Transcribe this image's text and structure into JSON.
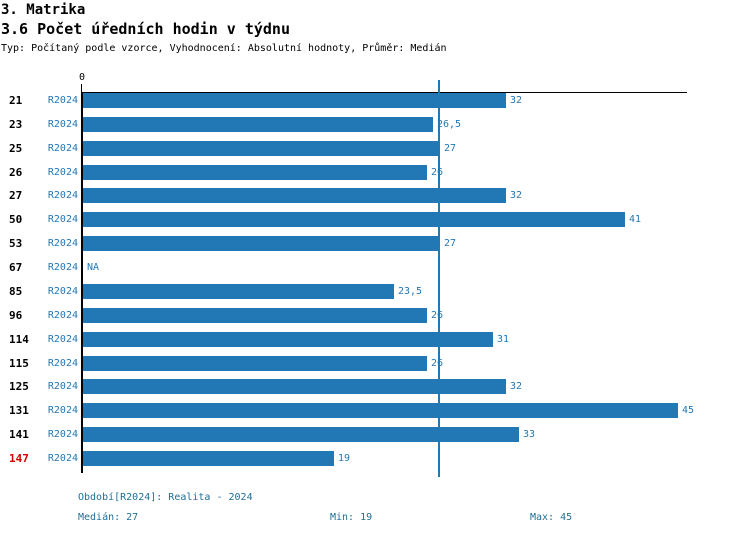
{
  "header": {
    "title": "3. Matrika",
    "subtitle": "3.6 Počet úředních hodin v týdnu",
    "meta": "Typ: Počítaný podle vzorce, Vyhodnocení: Absolutní hodnoty, Průměr: Medián"
  },
  "chart_data": {
    "type": "bar",
    "orientation": "horizontal",
    "title": "3.6 Počet úředních hodin v týdnu",
    "xlabel": "",
    "ylabel": "",
    "xlim": [
      0,
      45.8
    ],
    "x_ticks": [
      "0"
    ],
    "grid": false,
    "legend": "none",
    "series_label": "R2024",
    "categories": [
      "21",
      "23",
      "25",
      "26",
      "27",
      "50",
      "53",
      "67",
      "85",
      "96",
      "114",
      "115",
      "125",
      "131",
      "141",
      "147"
    ],
    "values": [
      32,
      26.5,
      27,
      26,
      32,
      41,
      27,
      null,
      23.5,
      26,
      31,
      26,
      32,
      45,
      33,
      19
    ],
    "value_labels": [
      "32",
      "26,5",
      "27",
      "26",
      "32",
      "41",
      "27",
      "NA",
      "23,5",
      "26",
      "31",
      "26",
      "32",
      "45",
      "33",
      "19"
    ],
    "highlighted_category": "147",
    "median_line_value": 27,
    "colors": {
      "bar": "#2277b5",
      "value_label": "#2277b5",
      "series_label": "#2277b5",
      "category_label": "#000000",
      "highlight": "#d40000",
      "axis": "#000000",
      "median_line": "#2277b5"
    }
  },
  "footer": {
    "period": "Období[R2024]: Realita - 2024",
    "median": "Medián: 27",
    "min": "Min: 19",
    "max": "Max: 45",
    "color": "#1e6f97"
  }
}
